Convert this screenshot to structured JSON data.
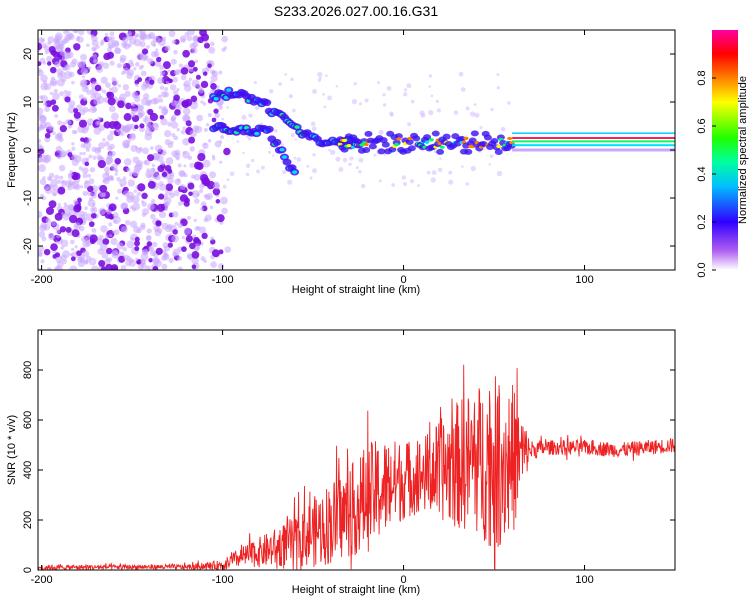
{
  "title": "S233.2026.027.00.16.G31",
  "chart_data": [
    {
      "type": "heatmap",
      "name": "spectrogram",
      "xlabel": "Height of straight line (km)",
      "ylabel": "Frequency (Hz)",
      "xlim": [
        -202,
        150
      ],
      "ylim": [
        -25,
        25
      ],
      "xticks": [
        -200,
        -100,
        0,
        100
      ],
      "yticks": [
        -20,
        -10,
        0,
        10,
        20
      ],
      "colorbar": {
        "label": "Normalized spectral amplitude",
        "range": [
          0.0,
          1.0
        ],
        "ticks": [
          0.0,
          0.2,
          0.4,
          0.6,
          0.8
        ],
        "colors": [
          "#ffffff",
          "#a020f0",
          "#0000ff",
          "#00ffff",
          "#00ff00",
          "#ffff00",
          "#ff8000",
          "#ff0000",
          "#ff00ff"
        ]
      },
      "features": {
        "noise_region_x": [
          -202,
          -100
        ],
        "upper_branch": [
          [
            -105,
            11
          ],
          [
            -95,
            12
          ],
          [
            -85,
            11
          ],
          [
            -75,
            9
          ],
          [
            -65,
            6
          ],
          [
            -55,
            3
          ],
          [
            -45,
            2
          ],
          [
            -35,
            1.5
          ],
          [
            -25,
            1.5
          ]
        ],
        "lower_branch": [
          [
            -105,
            5
          ],
          [
            -95,
            4.5
          ],
          [
            -85,
            4
          ],
          [
            -75,
            4
          ],
          [
            -65,
            -2
          ],
          [
            -60,
            -5
          ]
        ],
        "steady_line_x": [
          -30,
          150
        ],
        "steady_line_hz": 1.5
      }
    },
    {
      "type": "line",
      "name": "snr",
      "xlabel": "Height of straight line (km)",
      "ylabel": "SNR (10 * v/v)",
      "xlim": [
        -202,
        150
      ],
      "ylim": [
        0,
        960
      ],
      "xticks": [
        -200,
        -100,
        0,
        100
      ],
      "yticks": [
        0,
        200,
        400,
        600,
        800
      ],
      "color": "#ee2222",
      "envelope": {
        "x": [
          -202,
          -150,
          -120,
          -100,
          -90,
          -80,
          -70,
          -60,
          -50,
          -40,
          -30,
          -20,
          -10,
          0,
          10,
          20,
          30,
          40,
          50,
          60,
          70,
          80,
          100,
          120,
          150
        ],
        "base": [
          10,
          12,
          12,
          20,
          50,
          70,
          90,
          120,
          150,
          190,
          230,
          290,
          330,
          360,
          380,
          400,
          420,
          440,
          430,
          440,
          480,
          490,
          490,
          480,
          500
        ],
        "amp": [
          10,
          10,
          10,
          20,
          40,
          60,
          80,
          100,
          140,
          170,
          180,
          220,
          200,
          160,
          150,
          200,
          260,
          300,
          350,
          320,
          40,
          30,
          30,
          30,
          30
        ]
      }
    }
  ]
}
